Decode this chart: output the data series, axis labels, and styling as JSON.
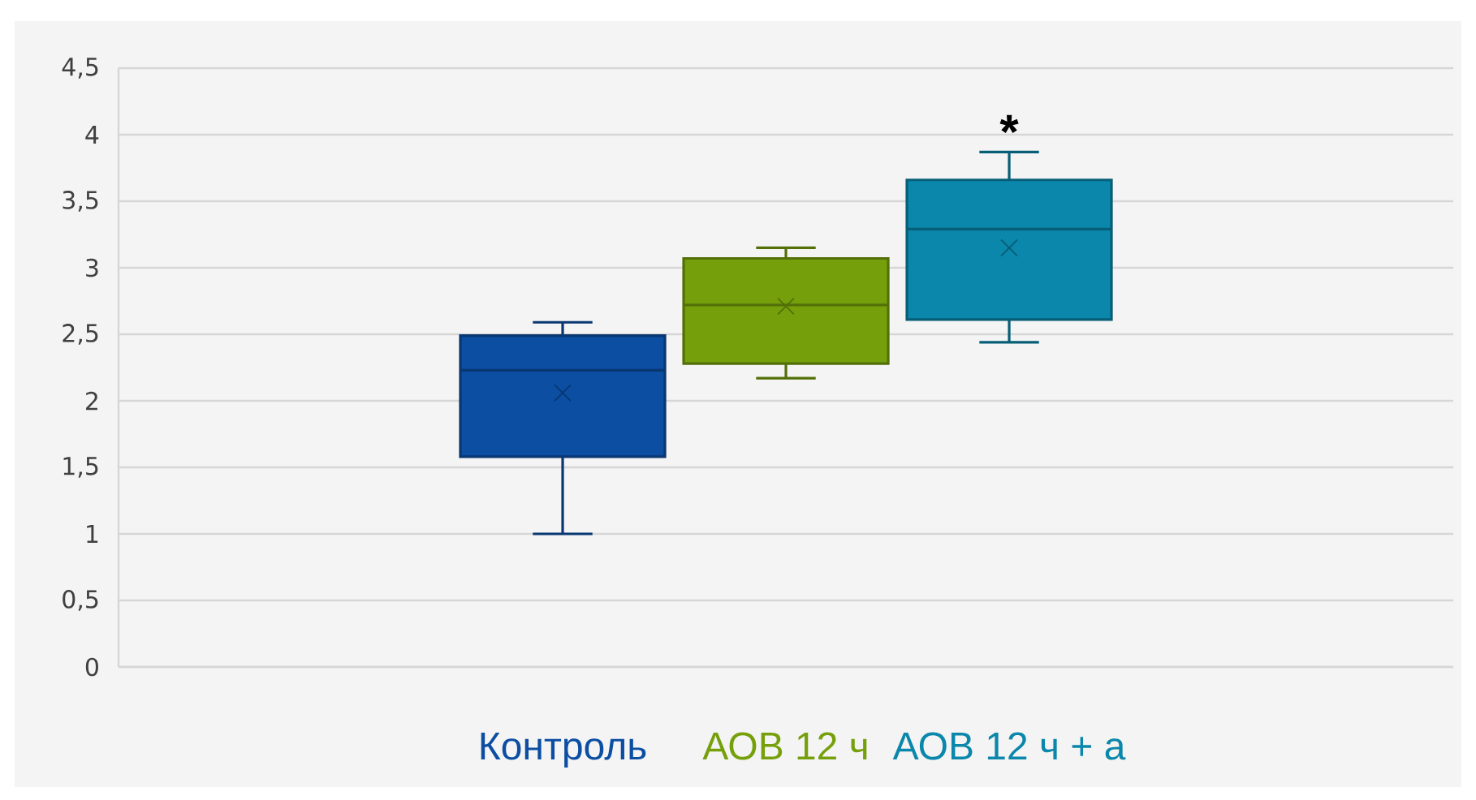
{
  "chart_data": {
    "type": "box",
    "categories": [
      null
    ],
    "series": [
      {
        "name": "Контроль",
        "color": "#0b4ea2",
        "boxes": [
          {
            "low": 1.0,
            "q1": 1.58,
            "median": 2.23,
            "q3": 2.49,
            "high": 2.59,
            "mean": 2.06
          }
        ]
      },
      {
        "name": "АОВ 12 ч",
        "color": "#76a00b",
        "boxes": [
          {
            "low": 2.17,
            "q1": 2.28,
            "median": 2.72,
            "q3": 3.07,
            "high": 3.15,
            "mean": 2.71
          }
        ]
      },
      {
        "name": "АОВ 12 ч + а",
        "color": "#0a87aa",
        "boxes": [
          {
            "low": 2.44,
            "q1": 2.61,
            "median": 3.29,
            "q3": 3.66,
            "high": 3.87,
            "mean": 3.15
          }
        ]
      }
    ],
    "ylim": [
      0,
      4.5
    ],
    "yticks": [
      0,
      {
        "value": 0.5,
        "label": "0,5"
      },
      1,
      {
        "value": 1.5,
        "label": "1,5"
      },
      2,
      {
        "value": 2.5,
        "label": "2,5"
      },
      3,
      {
        "value": 3.5,
        "label": "3,5"
      },
      4,
      {
        "value": 4.5,
        "label": "4,5"
      }
    ],
    "grid": "y",
    "annotations": [
      "*"
    ]
  }
}
